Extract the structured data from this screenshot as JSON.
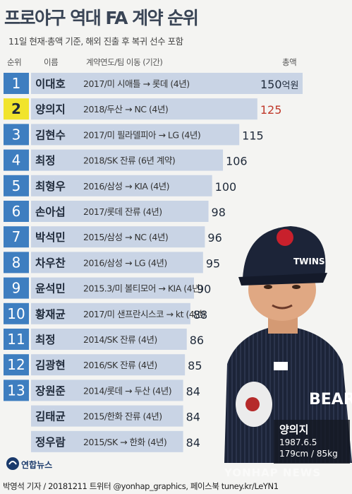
{
  "header": {
    "title": "프로야구 역대 FA 계약 순위",
    "subtitle": "11일 현재·총액 기준, 해외 진출 후 복귀 선수 포함",
    "col_rank": "순위",
    "col_name": "이름",
    "col_detail": "계약연도/팀 이동 (기간)",
    "col_total": "총액"
  },
  "chart_data": {
    "type": "bar",
    "unit": "억원",
    "highlight_index": 1,
    "colors": {
      "bar": "#c9d4e5",
      "badge": "#3e7ec0",
      "badge_highlight": "#f1e42c",
      "value_highlight": "#c0392b",
      "value": "#1f2a3a"
    },
    "rows": [
      {
        "rank": "1",
        "name": "이대호",
        "detail": "2017/미 시애틀 → 롯데 (4년)",
        "value": 150
      },
      {
        "rank": "2",
        "name": "양의지",
        "detail": "2018/두산 → NC (4년)",
        "value": 125
      },
      {
        "rank": "3",
        "name": "김현수",
        "detail": "2017/미 필라델피아 → LG (4년)",
        "value": 115
      },
      {
        "rank": "4",
        "name": "최정",
        "detail": "2018/SK 잔류 (6년 계약)",
        "value": 106
      },
      {
        "rank": "5",
        "name": "최형우",
        "detail": "2016/삼성 → KIA (4년)",
        "value": 100
      },
      {
        "rank": "6",
        "name": "손아섭",
        "detail": "2017/롯데 잔류 (4년)",
        "value": 98
      },
      {
        "rank": "7",
        "name": "박석민",
        "detail": "2015/삼성 → NC (4년)",
        "value": 96
      },
      {
        "rank": "8",
        "name": "차우찬",
        "detail": "2016/삼성 → LG (4년)",
        "value": 95
      },
      {
        "rank": "9",
        "name": "윤석민",
        "detail": "2015.3/미 볼티모어 → KIA (4년)",
        "value": 90
      },
      {
        "rank": "10",
        "name": "황재균",
        "detail": "2017/미 샌프란시스코 → kt (4년)",
        "value": 88
      },
      {
        "rank": "11",
        "name": "최정",
        "detail": "2014/SK 잔류 (4년)",
        "value": 86
      },
      {
        "rank": "12",
        "name": "김광현",
        "detail": "2016/SK 잔류 (4년)",
        "value": 85
      },
      {
        "rank": "13",
        "name": "장원준",
        "detail": "2014/롯데 → 두산 (4년)",
        "value": 84
      },
      {
        "rank": "",
        "name": "김태균",
        "detail": "2015/한화 잔류 (4년)",
        "value": 84
      },
      {
        "rank": "",
        "name": "정우람",
        "detail": "2015/SK → 한화 (4년)",
        "value": 84
      }
    ]
  },
  "player_caption": {
    "name": "양의지",
    "birth": "1987.6.5",
    "body": "179cm / 85kg"
  },
  "photo": {
    "icon": "baseball-player-photo",
    "helmet_text": "TWINS",
    "jersey_text": "BEARS"
  },
  "logo": {
    "icon": "yonhap-logo-icon",
    "text": "연합뉴스"
  },
  "watermark": "YONHAP NEWS",
  "footer": "박영석 기자 / 20181211 트위터 @yonhap_graphics, 페이스북 tuney.kr/LeYN1"
}
